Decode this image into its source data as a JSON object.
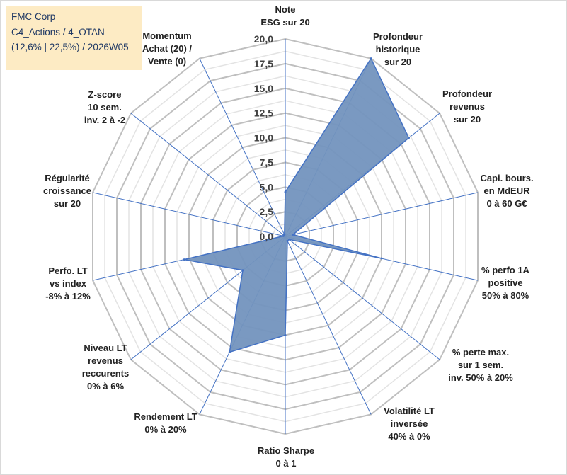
{
  "title_box": {
    "line1": "FMC Corp",
    "line2": "C4_Actions / 4_OTAN",
    "line3": "(12,6% | 22,5%) / 2026W05"
  },
  "chart_data": {
    "type": "radar",
    "title": "FMC Corp",
    "rmin": 0,
    "rmax": 20,
    "ticks": [
      "0,0",
      "2,5",
      "5,0",
      "7,5",
      "10,0",
      "12,5",
      "15,0",
      "17,5",
      "20,0"
    ],
    "grid": true,
    "axes": [
      {
        "label": [
          "Note",
          "ESG sur 20"
        ]
      },
      {
        "label": [
          "Profondeur",
          "historique",
          "sur 20"
        ]
      },
      {
        "label": [
          "Profondeur",
          "revenus",
          "sur 20"
        ]
      },
      {
        "label": [
          "Capi. bours.",
          "en MdEUR",
          "0 à 60 G€"
        ]
      },
      {
        "label": [
          "% perfo 1A",
          "positive",
          "50% à 80%"
        ]
      },
      {
        "label": [
          "% perte max.",
          "sur 1 sem.",
          "inv. 50% à 20%"
        ]
      },
      {
        "label": [
          "Volatilité LT",
          "inversée",
          "40% à 0%"
        ]
      },
      {
        "label": [
          "Ratio Sharpe",
          "0 à 1"
        ]
      },
      {
        "label": [
          "Rendement LT",
          "0% à 20%"
        ]
      },
      {
        "label": [
          "Niveau LT",
          "revenus",
          "reccurents",
          "0% à 6%"
        ]
      },
      {
        "label": [
          "Perfo. LT",
          "vs index",
          "-8% à 12%"
        ]
      },
      {
        "label": [
          "Régularité",
          "croissance",
          "sur 20"
        ]
      },
      {
        "label": [
          "Z-score",
          "10 sem.",
          "inv. 2 à -2"
        ]
      },
      {
        "label": [
          "Momentum",
          "Achat (20) /",
          "Vente (0)"
        ]
      }
    ],
    "series": [
      {
        "name": "FMC Corp",
        "values": [
          4.5,
          20.0,
          16.0,
          0.8,
          10.0,
          0.5,
          0.5,
          10.0,
          13.0,
          5.5,
          10.5,
          0.2,
          0.2,
          0.2
        ],
        "fill": "#7394be",
        "stroke": "#4472c4"
      }
    ]
  }
}
